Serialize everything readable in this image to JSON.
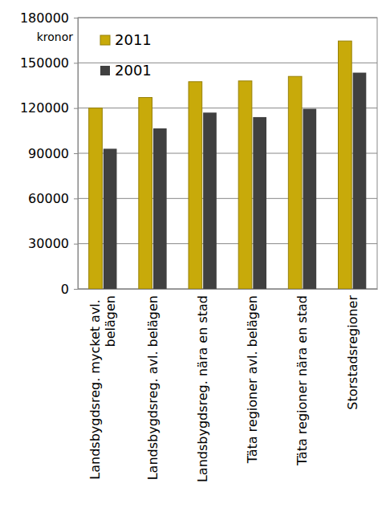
{
  "chart_data": {
    "type": "bar",
    "ylabel": "kronor",
    "categories": [
      "Landsbygdsreg. mycket avl. belägen",
      "Landsbygdsreg. avl. belägen",
      "Landsbygdsreg. nära en stad",
      "Täta regioner avl. belägen",
      "Täta regioner nära en stad",
      "Storstadsregioner"
    ],
    "series": [
      {
        "name": "2011",
        "color": "#c8aa0a",
        "values": [
          120000,
          127000,
          137500,
          138000,
          141000,
          164500
        ]
      },
      {
        "name": "2001",
        "color": "#404040",
        "values": [
          93000,
          106500,
          117000,
          114000,
          119500,
          143500
        ]
      }
    ],
    "ylim": [
      0,
      180000
    ],
    "yticks": [
      0,
      30000,
      60000,
      90000,
      120000,
      150000,
      180000
    ],
    "grid": true,
    "legend": "top-left"
  }
}
